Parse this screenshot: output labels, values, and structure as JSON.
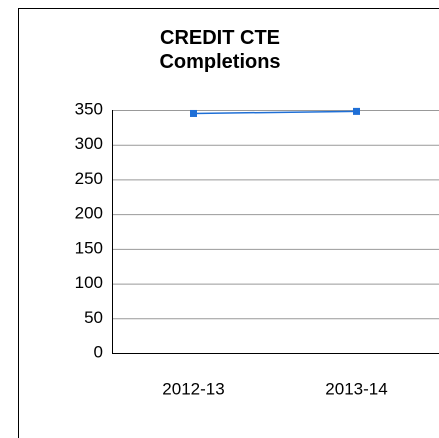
{
  "chart_data": {
    "type": "line",
    "title": "CREDIT CTE Completions",
    "categories": [
      "2012-13",
      "2013-14"
    ],
    "series": [
      {
        "name": "CREDIT CTE Completions",
        "color": "#1f6fd6",
        "values": [
          345,
          348
        ]
      }
    ],
    "ylim": [
      0,
      350
    ],
    "yticks": [
      0,
      50,
      100,
      150,
      200,
      250,
      300,
      350
    ],
    "grid": true
  }
}
